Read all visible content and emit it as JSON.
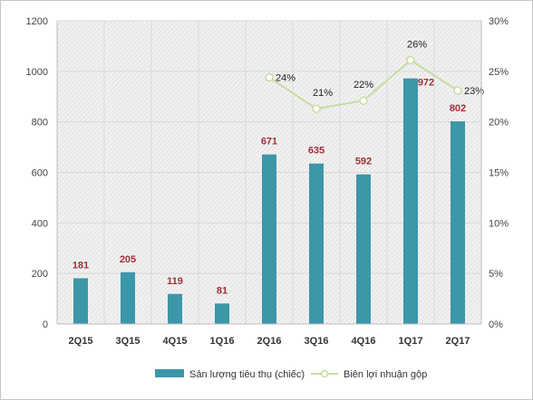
{
  "chart_data": {
    "type": "bar",
    "categories": [
      "2Q15",
      "3Q15",
      "4Q15",
      "1Q16",
      "2Q16",
      "3Q16",
      "4Q16",
      "1Q17",
      "2Q17"
    ],
    "series": [
      {
        "name": "Sản lượng tiêu thụ (chiếc)",
        "type": "bar",
        "axis": "left",
        "color": "#3c97a8",
        "values": [
          181,
          205,
          119,
          81,
          671,
          635,
          592,
          972,
          802
        ],
        "labels": [
          "181",
          "205",
          "119",
          "81",
          "671",
          "635",
          "592",
          "972",
          "802"
        ]
      },
      {
        "name": "Biên lợi nhuận gộp",
        "type": "line",
        "axis": "right",
        "color": "#c6dca0",
        "values": [
          null,
          null,
          null,
          null,
          24.4,
          21.3,
          22.1,
          26.1,
          23.1
        ],
        "labels": [
          "",
          "",
          "",
          "",
          "24%",
          "21%",
          "22%",
          "26%",
          "23%"
        ]
      }
    ],
    "y_left": {
      "ylim": [
        0,
        1200
      ],
      "ticks": [
        "0",
        "200",
        "400",
        "600",
        "800",
        "1000",
        "1200"
      ]
    },
    "y_right": {
      "ylim": [
        0,
        30
      ],
      "ticks": [
        "0%",
        "5%",
        "10%",
        "15%",
        "20%",
        "25%",
        "30%"
      ]
    },
    "grid": true,
    "legend": "bottom"
  }
}
